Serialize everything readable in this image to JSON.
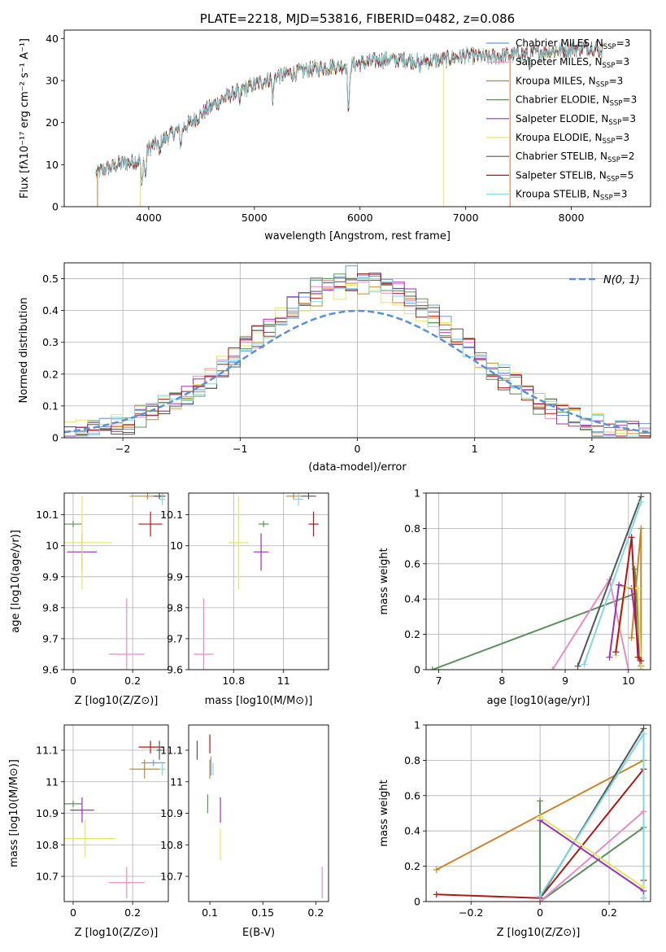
{
  "chart_data": [
    {
      "type": "line",
      "panel": "spectrum",
      "title": "PLATE=2218, MJD=53816, FIBERID=0482, z=0.086",
      "xlabel": "wavelength [Angstrom, rest frame]",
      "ylabel": "Flux [fλ10⁻¹⁷ erg cm⁻² s⁻¹ A⁻¹]",
      "xlim": [
        3200,
        8750
      ],
      "ylim": [
        0,
        42
      ],
      "xticks": [
        4000,
        5000,
        6000,
        7000,
        8000
      ],
      "yticks": [
        0,
        10,
        20,
        30,
        40
      ],
      "legend_position": "right",
      "grid": false,
      "series": [
        {
          "name": "Chabrier MILES, N",
          "sub": "SSP",
          "tail": "=3",
          "color": "#6a9ad8"
        },
        {
          "name": "Salpeter MILES, N",
          "sub": "SSP",
          "tail": "=3",
          "color": "#e88cc6"
        },
        {
          "name": "Kroupa MILES, N",
          "sub": "SSP",
          "tail": "=3",
          "color": "#c8862a"
        },
        {
          "name": "Chabrier ELODIE, N",
          "sub": "SSP",
          "tail": "=3",
          "color": "#5c8f5c"
        },
        {
          "name": "Salpeter ELODIE, N",
          "sub": "SSP",
          "tail": "=3",
          "color": "#9b30b8"
        },
        {
          "name": "Kroupa ELODIE, N",
          "sub": "SSP",
          "tail": "=3",
          "color": "#e6e660"
        },
        {
          "name": "Chabrier STELIB, N",
          "sub": "SSP",
          "tail": "=2",
          "color": "#555555"
        },
        {
          "name": "Salpeter STELIB, N",
          "sub": "SSP",
          "tail": "=5",
          "color": "#b01818"
        },
        {
          "name": "Kroupa STELIB, N",
          "sub": "SSP",
          "tail": "=3",
          "color": "#80d8e0"
        }
      ],
      "continuum": [
        [
          3500,
          8
        ],
        [
          3700,
          10
        ],
        [
          3900,
          11
        ],
        [
          4000,
          14
        ],
        [
          4200,
          17
        ],
        [
          4400,
          20
        ],
        [
          4600,
          24
        ],
        [
          4800,
          27
        ],
        [
          5000,
          29
        ],
        [
          5200,
          31
        ],
        [
          5400,
          32
        ],
        [
          5600,
          33
        ],
        [
          5800,
          33.5
        ],
        [
          6000,
          34
        ],
        [
          6200,
          35
        ],
        [
          6400,
          35
        ],
        [
          6600,
          34.5
        ],
        [
          6800,
          35
        ],
        [
          7000,
          36
        ],
        [
          7200,
          35.5
        ],
        [
          7400,
          36
        ],
        [
          7600,
          36.5
        ],
        [
          7800,
          37
        ],
        [
          8000,
          37.5
        ],
        [
          8200,
          38
        ],
        [
          8300,
          37
        ]
      ],
      "absorption": [
        [
          3934,
          7
        ],
        [
          3968,
          6
        ],
        [
          4101,
          3
        ],
        [
          4304,
          4
        ],
        [
          4861,
          3
        ],
        [
          5175,
          5
        ],
        [
          5892,
          12
        ],
        [
          6563,
          2
        ],
        [
          7600,
          3
        ]
      ]
    },
    {
      "type": "step",
      "panel": "residuals",
      "xlabel": "(data-model)/error",
      "ylabel": "Normed distribution",
      "xlim": [
        -2.5,
        2.5
      ],
      "ylim": [
        0,
        0.55
      ],
      "xticks": [
        -2,
        -1,
        0,
        1,
        2
      ],
      "yticks": [
        0,
        0.1,
        0.2,
        0.3,
        0.4,
        0.5
      ],
      "grid": true,
      "reference": {
        "name": "N(0, 1)",
        "mu": 0,
        "sigma": 1,
        "color": "#5b8fd9"
      },
      "bins": {
        "start": -2.5,
        "width": 0.1,
        "count": 50
      }
    },
    {
      "type": "errorbar",
      "panel": "age-vs-Z",
      "xlabel": "Z [log10(Z/Z⊙)]",
      "ylabel": "age  [log10(age/yr)]",
      "xlim": [
        -0.03,
        0.32
      ],
      "ylim": [
        9.6,
        10.17
      ],
      "xticks": [
        0.0,
        0.2
      ],
      "yticks": [
        9.6,
        9.7,
        9.8,
        9.9,
        10.0,
        10.1
      ],
      "grid": true,
      "points": [
        {
          "x": 0.0,
          "y": 10.07,
          "ex": 0.03,
          "ey": 0.01,
          "color": "#5c8f5c"
        },
        {
          "x": 0.03,
          "y": 9.98,
          "ex": 0.05,
          "ey": 0.06,
          "color": "#9b30b8"
        },
        {
          "x": 0.03,
          "y": 10.01,
          "ex": 0.1,
          "ey": 0.15,
          "color": "#e6e660"
        },
        {
          "x": 0.18,
          "y": 9.65,
          "ex": 0.06,
          "ey": 0.18,
          "color": "#e88cc6"
        },
        {
          "x": 0.25,
          "y": 10.16,
          "ex": 0.06,
          "ey": 0.01,
          "color": "#c8862a"
        },
        {
          "x": 0.29,
          "y": 10.16,
          "ex": 0.02,
          "ey": 0.01,
          "color": "#555555"
        },
        {
          "x": 0.3,
          "y": 10.15,
          "ex": 0.01,
          "ey": 0.02,
          "color": "#80d8e0"
        },
        {
          "x": 0.26,
          "y": 10.07,
          "ex": 0.04,
          "ey": 0.04,
          "color": "#b01818"
        }
      ]
    },
    {
      "type": "errorbar",
      "panel": "age-vs-mass",
      "xlabel": "mass [log10(M/M⊙)]",
      "ylabel": "",
      "xlim": [
        10.62,
        11.18
      ],
      "ylim": [
        9.6,
        10.17
      ],
      "xticks": [
        10.8,
        11.0
      ],
      "yticks": [
        9.6,
        9.7,
        9.8,
        9.9,
        10.0,
        10.1
      ],
      "grid": true,
      "points": [
        {
          "x": 10.68,
          "y": 9.65,
          "ex": 0.04,
          "ey": 0.18,
          "color": "#e88cc6"
        },
        {
          "x": 10.82,
          "y": 10.01,
          "ex": 0.04,
          "ey": 0.15,
          "color": "#e6e660"
        },
        {
          "x": 10.91,
          "y": 9.98,
          "ex": 0.03,
          "ey": 0.06,
          "color": "#9b30b8"
        },
        {
          "x": 10.92,
          "y": 10.07,
          "ex": 0.02,
          "ey": 0.01,
          "color": "#5c8f5c"
        },
        {
          "x": 11.04,
          "y": 10.16,
          "ex": 0.03,
          "ey": 0.01,
          "color": "#c8862a"
        },
        {
          "x": 11.06,
          "y": 10.15,
          "ex": 0.02,
          "ey": 0.02,
          "color": "#80d8e0"
        },
        {
          "x": 11.1,
          "y": 10.16,
          "ex": 0.03,
          "ey": 0.01,
          "color": "#555555"
        },
        {
          "x": 11.12,
          "y": 10.07,
          "ex": 0.02,
          "ey": 0.04,
          "color": "#b01818"
        }
      ]
    },
    {
      "type": "line",
      "panel": "weight-vs-age",
      "xlabel": "age  [log10(age/yr)]",
      "ylabel": "mass weight",
      "xlim": [
        6.8,
        10.35
      ],
      "ylim": [
        0,
        1
      ],
      "xticks": [
        7,
        8,
        9,
        10
      ],
      "yticks": [
        0,
        0.2,
        0.4,
        0.6,
        0.8,
        1.0
      ],
      "grid": true,
      "series": [
        {
          "color": "#5c8f5c",
          "points": [
            [
              6.9,
              0.0
            ],
            [
              10.1,
              0.43
            ],
            [
              10.1,
              0.57
            ],
            [
              10.2,
              0.0
            ]
          ]
        },
        {
          "color": "#e88cc6",
          "points": [
            [
              8.8,
              0.0
            ],
            [
              9.7,
              0.51
            ],
            [
              10.0,
              0.0
            ]
          ]
        },
        {
          "color": "#555555",
          "points": [
            [
              9.2,
              0.02
            ],
            [
              10.2,
              0.98
            ]
          ]
        },
        {
          "color": "#80d8e0",
          "points": [
            [
              9.3,
              0.03
            ],
            [
              10.2,
              0.95
            ]
          ]
        },
        {
          "color": "#c8862a",
          "points": [
            [
              10.05,
              0.18
            ],
            [
              10.2,
              0.8
            ],
            [
              10.2,
              0.02
            ]
          ]
        },
        {
          "color": "#9b30b8",
          "points": [
            [
              9.7,
              0.07
            ],
            [
              9.85,
              0.48
            ],
            [
              10.05,
              0.46
            ],
            [
              10.2,
              0.0
            ]
          ]
        },
        {
          "color": "#e6e660",
          "points": [
            [
              9.8,
              0.08
            ],
            [
              9.95,
              0.47
            ],
            [
              10.15,
              0.46
            ],
            [
              10.2,
              0.0
            ]
          ]
        },
        {
          "color": "#b01818",
          "points": [
            [
              9.8,
              0.1
            ],
            [
              10.05,
              0.75
            ],
            [
              10.15,
              0.07
            ],
            [
              10.2,
              0.05
            ]
          ]
        }
      ]
    },
    {
      "type": "errorbar",
      "panel": "mass-vs-Z",
      "xlabel": "Z [log10(Z/Z⊙)]",
      "ylabel": "mass [log10(M/M⊙)]",
      "xlim": [
        -0.03,
        0.32
      ],
      "ylim": [
        10.62,
        11.18
      ],
      "xticks": [
        0.0,
        0.2
      ],
      "yticks": [
        10.7,
        10.8,
        10.9,
        11.0,
        11.1
      ],
      "grid": true,
      "points": [
        {
          "x": 0.0,
          "y": 10.93,
          "ex": 0.03,
          "ey": 0.01,
          "color": "#5c8f5c"
        },
        {
          "x": 0.03,
          "y": 10.91,
          "ex": 0.04,
          "ey": 0.04,
          "color": "#9b30b8"
        },
        {
          "x": 0.04,
          "y": 10.82,
          "ex": 0.1,
          "ey": 0.06,
          "color": "#e6e660"
        },
        {
          "x": 0.18,
          "y": 10.68,
          "ex": 0.06,
          "ey": 0.05,
          "color": "#e88cc6"
        },
        {
          "x": 0.24,
          "y": 11.04,
          "ex": 0.05,
          "ey": 0.03,
          "color": "#c8862a"
        },
        {
          "x": 0.27,
          "y": 11.06,
          "ex": 0.04,
          "ey": 0.01,
          "color": "#6a9ad8"
        },
        {
          "x": 0.3,
          "y": 11.04,
          "ex": 0.01,
          "ey": 0.02,
          "color": "#80d8e0"
        },
        {
          "x": 0.26,
          "y": 11.11,
          "ex": 0.04,
          "ey": 0.02,
          "color": "#b01818"
        },
        {
          "x": 0.29,
          "y": 11.1,
          "ex": 0.01,
          "ey": 0.03,
          "color": "#555555"
        }
      ]
    },
    {
      "type": "errorbar",
      "panel": "mass-vs-EBV",
      "xlabel": "E(B-V)",
      "ylabel": "",
      "xlim": [
        0.08,
        0.212
      ],
      "ylim": [
        10.62,
        11.18
      ],
      "xticks": [
        0.1,
        0.15,
        0.2
      ],
      "yticks": [
        10.7,
        10.8,
        10.9,
        11.0,
        11.1
      ],
      "grid": false,
      "points": [
        {
          "x": 0.088,
          "y": 11.1,
          "ex": 0,
          "ey": 0.03,
          "color": "#555555"
        },
        {
          "x": 0.1,
          "y": 11.12,
          "ex": 0,
          "ey": 0.03,
          "color": "#b01818"
        },
        {
          "x": 0.1,
          "y": 11.04,
          "ex": 0,
          "ey": 0.03,
          "color": "#c8862a"
        },
        {
          "x": 0.101,
          "y": 11.05,
          "ex": 0,
          "ey": 0.03,
          "color": "#6a9ad8"
        },
        {
          "x": 0.103,
          "y": 11.04,
          "ex": 0,
          "ey": 0.02,
          "color": "#80d8e0"
        },
        {
          "x": 0.098,
          "y": 10.93,
          "ex": 0,
          "ey": 0.03,
          "color": "#5c8f5c"
        },
        {
          "x": 0.11,
          "y": 10.91,
          "ex": 0,
          "ey": 0.04,
          "color": "#9b30b8"
        },
        {
          "x": 0.11,
          "y": 10.8,
          "ex": 0,
          "ey": 0.05,
          "color": "#e6e660"
        },
        {
          "x": 0.206,
          "y": 10.68,
          "ex": 0,
          "ey": 0.05,
          "color": "#e88cc6"
        }
      ]
    },
    {
      "type": "line",
      "panel": "weight-vs-Z",
      "xlabel": "Z [log10(Z/Z⊙)]",
      "ylabel": "mass weight",
      "xlim": [
        -0.33,
        0.32
      ],
      "ylim": [
        0,
        1
      ],
      "xticks": [
        -0.2,
        0.0,
        0.2
      ],
      "yticks": [
        0,
        0.2,
        0.4,
        0.6,
        0.8,
        1.0
      ],
      "grid": true,
      "series": [
        {
          "color": "#c8862a",
          "points": [
            [
              -0.3,
              0.18
            ],
            [
              0.3,
              0.8
            ],
            [
              0.3,
              0.02
            ]
          ]
        },
        {
          "color": "#b01818",
          "points": [
            [
              -0.3,
              0.04
            ],
            [
              0.0,
              0.02
            ],
            [
              0.3,
              0.75
            ],
            [
              0.3,
              0.12
            ]
          ]
        },
        {
          "color": "#5c8f5c",
          "points": [
            [
              0.0,
              0.57
            ],
            [
              0.0,
              0.0
            ],
            [
              0.3,
              0.42
            ]
          ]
        },
        {
          "color": "#555555",
          "points": [
            [
              0.0,
              0.02
            ],
            [
              0.3,
              0.98
            ]
          ]
        },
        {
          "color": "#80d8e0",
          "points": [
            [
              0.0,
              0.03
            ],
            [
              0.3,
              0.95
            ],
            [
              0.3,
              0.02
            ]
          ]
        },
        {
          "color": "#e88cc6",
          "points": [
            [
              0.0,
              0.0
            ],
            [
              0.3,
              0.51
            ]
          ]
        },
        {
          "color": "#9b30b8",
          "points": [
            [
              0.0,
              0.46
            ],
            [
              0.3,
              0.06
            ]
          ]
        },
        {
          "color": "#e6e660",
          "points": [
            [
              0.0,
              0.48
            ],
            [
              0.3,
              0.08
            ]
          ]
        }
      ]
    }
  ]
}
